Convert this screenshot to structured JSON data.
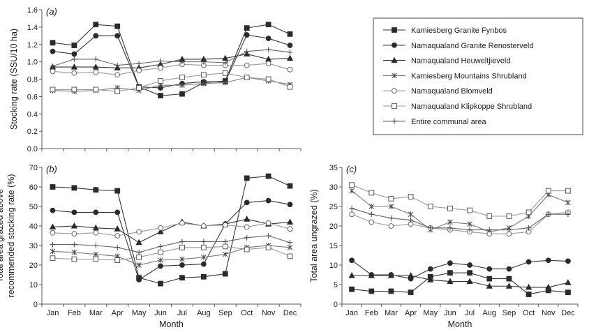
{
  "chart_data": [
    {
      "panel": "a",
      "panel_label": "(a)",
      "type": "line",
      "xlabel": "",
      "ylabel": "Stocking rate (SSU/10 ha)",
      "ylim": [
        0,
        1.6
      ],
      "yticks": [
        "0.0",
        "0.2",
        "0.4",
        "0.6",
        "0.8",
        "1.0",
        "1.2",
        "1.4",
        "1.6"
      ],
      "yticks_values": [
        0,
        0.2,
        0.4,
        0.6,
        0.8,
        1.0,
        1.2,
        1.4,
        1.6
      ],
      "categories": [
        "Jan",
        "Feb",
        "Mar",
        "Apr",
        "May",
        "Jun",
        "Jul",
        "Aug",
        "Sep",
        "Oct",
        "Nov",
        "Dec"
      ],
      "show_tick_labels": false,
      "series": [
        {
          "name": "Kamiesberg Granite Fynbos",
          "marker": "square-filled",
          "values": [
            1.22,
            1.19,
            1.43,
            1.41,
            0.71,
            0.61,
            0.63,
            0.76,
            0.78,
            1.39,
            1.43,
            1.32
          ]
        },
        {
          "name": "Namaqualand Granite Renosterveld",
          "marker": "circle-filled",
          "values": [
            1.12,
            1.09,
            1.3,
            1.3,
            0.71,
            0.7,
            0.75,
            0.77,
            0.77,
            1.31,
            1.27,
            1.19
          ]
        },
        {
          "name": "Namaqualand Heuweltjieveld",
          "marker": "triangle-filled",
          "values": [
            0.94,
            0.94,
            0.94,
            0.93,
            0.93,
            0.97,
            1.03,
            1.03,
            1.04,
            1.09,
            1.03,
            1.04
          ]
        },
        {
          "name": "Kamiesberg Mountains Shrubland",
          "marker": "asterisk",
          "values": [
            0.67,
            0.66,
            0.67,
            0.7,
            0.67,
            0.73,
            0.73,
            0.75,
            0.76,
            0.82,
            0.78,
            0.74
          ]
        },
        {
          "name": "Namaqualand Blomveld",
          "marker": "circle-open",
          "values": [
            0.89,
            0.87,
            0.88,
            0.85,
            0.9,
            0.93,
            0.97,
            0.96,
            0.96,
            0.96,
            0.98,
            0.91
          ]
        },
        {
          "name": "Namaqualand Klipkoppe Shrubland",
          "marker": "square-open",
          "values": [
            0.68,
            0.68,
            0.68,
            0.66,
            0.7,
            0.78,
            0.82,
            0.85,
            0.87,
            0.82,
            0.8,
            0.71
          ]
        },
        {
          "name": "Entire communal area",
          "marker": "plus",
          "values": [
            0.95,
            1.03,
            1.03,
            0.96,
            0.98,
            1.01,
            1.0,
            1.0,
            0.99,
            1.12,
            1.14,
            1.11
          ]
        }
      ]
    },
    {
      "panel": "b",
      "panel_label": "(b)",
      "type": "line",
      "xlabel": "Month",
      "ylabel_lines": [
        "Total area grazed above",
        "recommended stocking rate (%)"
      ],
      "ylim": [
        0,
        70
      ],
      "yticks": [
        "0",
        "10",
        "20",
        "30",
        "40",
        "50",
        "60",
        "70"
      ],
      "yticks_values": [
        0,
        10,
        20,
        30,
        40,
        50,
        60,
        70
      ],
      "categories": [
        "Jan",
        "Feb",
        "Mar",
        "Apr",
        "May",
        "Jun",
        "Jul",
        "Aug",
        "Sep",
        "Oct",
        "Nov",
        "Dec"
      ],
      "show_tick_labels": true,
      "series": [
        {
          "marker": "square-filled",
          "values": [
            60,
            59.5,
            58.5,
            58,
            13.5,
            10.5,
            13.5,
            14,
            15.5,
            64.5,
            65.5,
            60.5
          ]
        },
        {
          "marker": "circle-filled",
          "values": [
            48,
            47,
            47,
            47,
            12.5,
            19.5,
            20,
            20.5,
            41,
            52,
            53,
            51
          ]
        },
        {
          "marker": "triangle-filled",
          "values": [
            39.5,
            40,
            39,
            38.5,
            31.5,
            37,
            42,
            40,
            41,
            43.5,
            41,
            42
          ]
        },
        {
          "marker": "asterisk",
          "values": [
            27,
            26.5,
            25.5,
            24.5,
            20,
            22.5,
            23,
            24,
            25.5,
            29,
            30,
            29
          ]
        },
        {
          "marker": "circle-open",
          "values": [
            36.5,
            36,
            36.5,
            35,
            37,
            39,
            41.5,
            40,
            40.5,
            39.5,
            41.5,
            38.5
          ]
        },
        {
          "marker": "square-open",
          "values": [
            23.5,
            23,
            23,
            22.5,
            24,
            26.5,
            29,
            29,
            29.5,
            28,
            29,
            24.5
          ]
        },
        {
          "marker": "plus",
          "values": [
            30.5,
            30.5,
            30,
            29,
            26.5,
            29.5,
            32,
            32,
            32,
            34,
            35,
            31.5
          ]
        }
      ]
    },
    {
      "panel": "c",
      "panel_label": "(c)",
      "type": "line",
      "xlabel": "Month",
      "ylabel": "Total area ungrazed (%)",
      "ylim": [
        0,
        35
      ],
      "yticks": [
        "0",
        "5",
        "10",
        "15",
        "20",
        "25",
        "30",
        "35"
      ],
      "yticks_values": [
        0,
        5,
        10,
        15,
        20,
        25,
        30,
        35
      ],
      "categories": [
        "Jan",
        "Feb",
        "Mar",
        "Apr",
        "May",
        "Jun",
        "Jul",
        "Aug",
        "Sep",
        "Oct",
        "Nov",
        "Dec"
      ],
      "show_tick_labels": true,
      "series": [
        {
          "marker": "square-filled",
          "values": [
            3.8,
            3.3,
            3.3,
            3.0,
            7.0,
            8.0,
            8.0,
            6.5,
            6.5,
            2.5,
            3.5,
            3.0
          ]
        },
        {
          "marker": "circle-filled",
          "values": [
            11.2,
            7.5,
            7.5,
            6.5,
            9.0,
            10.5,
            10.0,
            9.0,
            9.0,
            10.8,
            11.2,
            11.0
          ]
        },
        {
          "marker": "triangle-filled",
          "values": [
            7.3,
            7.3,
            7.3,
            7.3,
            6.2,
            5.8,
            5.8,
            4.6,
            4.6,
            4.3,
            4.3,
            5.5
          ]
        },
        {
          "marker": "asterisk",
          "values": [
            29,
            25,
            25,
            23,
            19,
            21,
            20.5,
            18.5,
            19.5,
            22.5,
            28,
            26
          ]
        },
        {
          "marker": "circle-open",
          "values": [
            23,
            21,
            20,
            20.5,
            19.5,
            19,
            18.5,
            18,
            18,
            18.5,
            23,
            23.5
          ]
        },
        {
          "marker": "square-open",
          "values": [
            30.5,
            28.5,
            27,
            27.5,
            25,
            24.5,
            24,
            22.5,
            22.5,
            23.5,
            29,
            29
          ]
        },
        {
          "marker": "plus",
          "values": [
            24.5,
            23,
            22,
            21.5,
            19.5,
            19.5,
            19,
            19,
            19,
            19.5,
            23,
            23
          ]
        }
      ]
    }
  ]
}
